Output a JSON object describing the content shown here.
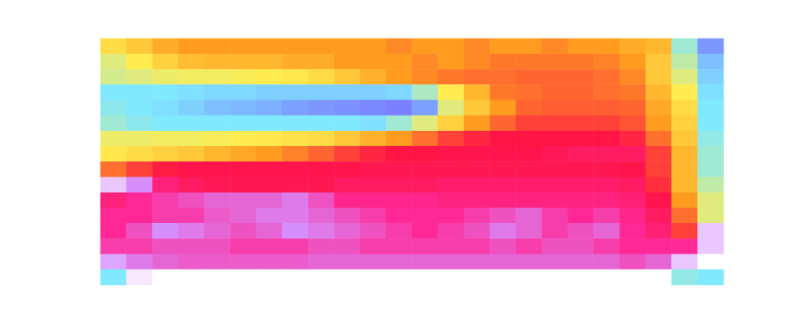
{
  "chart_data": {
    "type": "heatmap",
    "tick_labels": false,
    "zlim": [
      0,
      1
    ],
    "cells": [
      [
        0.38,
        0.42,
        0.47,
        0.5,
        0.5,
        0.5,
        0.5,
        0.5,
        0.5,
        0.5,
        0.5,
        0.52,
        0.5,
        0.5,
        0.52,
        0.5,
        0.5,
        0.52,
        0.5,
        0.5,
        0.47,
        0.45,
        0.2,
        0.05
      ],
      [
        0.3,
        0.35,
        0.4,
        0.44,
        0.45,
        0.45,
        0.45,
        0.47,
        0.47,
        0.5,
        0.5,
        0.5,
        0.52,
        0.5,
        0.52,
        0.54,
        0.54,
        0.54,
        0.54,
        0.53,
        0.5,
        0.42,
        0.25,
        0.1
      ],
      [
        0.28,
        0.3,
        0.32,
        0.33,
        0.33,
        0.34,
        0.35,
        0.36,
        0.38,
        0.42,
        0.46,
        0.5,
        0.52,
        0.54,
        0.55,
        0.55,
        0.56,
        0.56,
        0.56,
        0.55,
        0.52,
        0.42,
        0.3,
        0.12
      ],
      [
        0.15,
        0.15,
        0.15,
        0.14,
        0.13,
        0.13,
        0.12,
        0.12,
        0.12,
        0.12,
        0.12,
        0.13,
        0.22,
        0.35,
        0.45,
        0.54,
        0.55,
        0.56,
        0.56,
        0.55,
        0.54,
        0.45,
        0.35,
        0.14
      ],
      [
        0.17,
        0.15,
        0.14,
        0.12,
        0.1,
        0.09,
        0.08,
        0.06,
        0.05,
        0.04,
        0.03,
        0.02,
        0.06,
        0.3,
        0.42,
        0.5,
        0.56,
        0.57,
        0.57,
        0.57,
        0.56,
        0.48,
        0.38,
        0.15
      ],
      [
        0.2,
        0.17,
        0.15,
        0.15,
        0.15,
        0.15,
        0.15,
        0.15,
        0.15,
        0.15,
        0.14,
        0.2,
        0.3,
        0.4,
        0.5,
        0.56,
        0.6,
        0.6,
        0.6,
        0.6,
        0.58,
        0.5,
        0.4,
        0.15
      ],
      [
        0.32,
        0.32,
        0.33,
        0.33,
        0.34,
        0.35,
        0.36,
        0.37,
        0.38,
        0.42,
        0.46,
        0.5,
        0.55,
        0.6,
        0.63,
        0.65,
        0.65,
        0.65,
        0.65,
        0.65,
        0.63,
        0.55,
        0.42,
        0.18
      ],
      [
        0.36,
        0.38,
        0.4,
        0.42,
        0.45,
        0.48,
        0.5,
        0.53,
        0.56,
        0.6,
        0.63,
        0.65,
        0.65,
        0.66,
        0.66,
        0.66,
        0.66,
        0.68,
        0.7,
        0.7,
        0.7,
        0.6,
        0.45,
        0.2
      ],
      [
        0.55,
        0.6,
        0.64,
        0.66,
        0.66,
        0.66,
        0.66,
        0.66,
        0.66,
        0.66,
        0.67,
        0.67,
        0.67,
        0.67,
        0.67,
        0.67,
        0.67,
        0.67,
        0.67,
        0.67,
        0.66,
        0.6,
        0.45,
        0.2
      ],
      [
        0.95,
        0.9,
        0.75,
        0.7,
        0.68,
        0.67,
        0.67,
        0.67,
        0.67,
        0.7,
        0.7,
        0.7,
        0.7,
        0.72,
        0.72,
        0.72,
        0.72,
        0.72,
        0.72,
        0.72,
        0.7,
        0.62,
        0.45,
        0.25
      ],
      [
        0.75,
        0.8,
        0.82,
        0.84,
        0.86,
        0.86,
        0.86,
        0.88,
        0.84,
        0.78,
        0.78,
        0.78,
        0.78,
        0.76,
        0.76,
        0.76,
        0.76,
        0.76,
        0.76,
        0.76,
        0.74,
        0.66,
        0.5,
        0.3
      ],
      [
        0.8,
        0.8,
        0.82,
        0.82,
        0.85,
        0.86,
        0.88,
        0.88,
        0.86,
        0.84,
        0.82,
        0.8,
        0.8,
        0.8,
        0.82,
        0.84,
        0.86,
        0.82,
        0.8,
        0.82,
        0.78,
        0.7,
        0.55,
        0.3
      ],
      [
        0.8,
        0.84,
        0.9,
        0.88,
        0.86,
        0.84,
        0.86,
        0.9,
        0.88,
        0.86,
        0.84,
        0.82,
        0.8,
        0.82,
        0.84,
        0.88,
        0.86,
        0.82,
        0.84,
        0.86,
        0.8,
        0.74,
        0.6,
        0.95
      ],
      [
        0.82,
        0.82,
        0.84,
        0.84,
        0.84,
        0.82,
        0.82,
        0.82,
        0.84,
        0.84,
        0.82,
        0.82,
        0.82,
        0.82,
        0.82,
        0.84,
        0.82,
        0.84,
        0.84,
        0.82,
        0.8,
        0.8,
        0.8,
        0.95
      ],
      [
        0.92,
        0.88,
        0.86,
        0.85,
        0.85,
        0.85,
        0.85,
        0.85,
        0.86,
        0.86,
        0.86,
        0.86,
        0.86,
        0.86,
        0.86,
        0.86,
        0.86,
        0.86,
        0.86,
        0.86,
        0.84,
        0.86,
        0.95,
        1.0
      ],
      [
        0.15,
        0.98,
        1.0,
        1.0,
        1.0,
        1.0,
        1.0,
        1.0,
        1.0,
        1.0,
        1.0,
        1.0,
        1.0,
        1.0,
        1.0,
        1.0,
        1.0,
        1.0,
        1.0,
        1.0,
        1.0,
        1.0,
        0.18,
        0.15
      ]
    ]
  }
}
